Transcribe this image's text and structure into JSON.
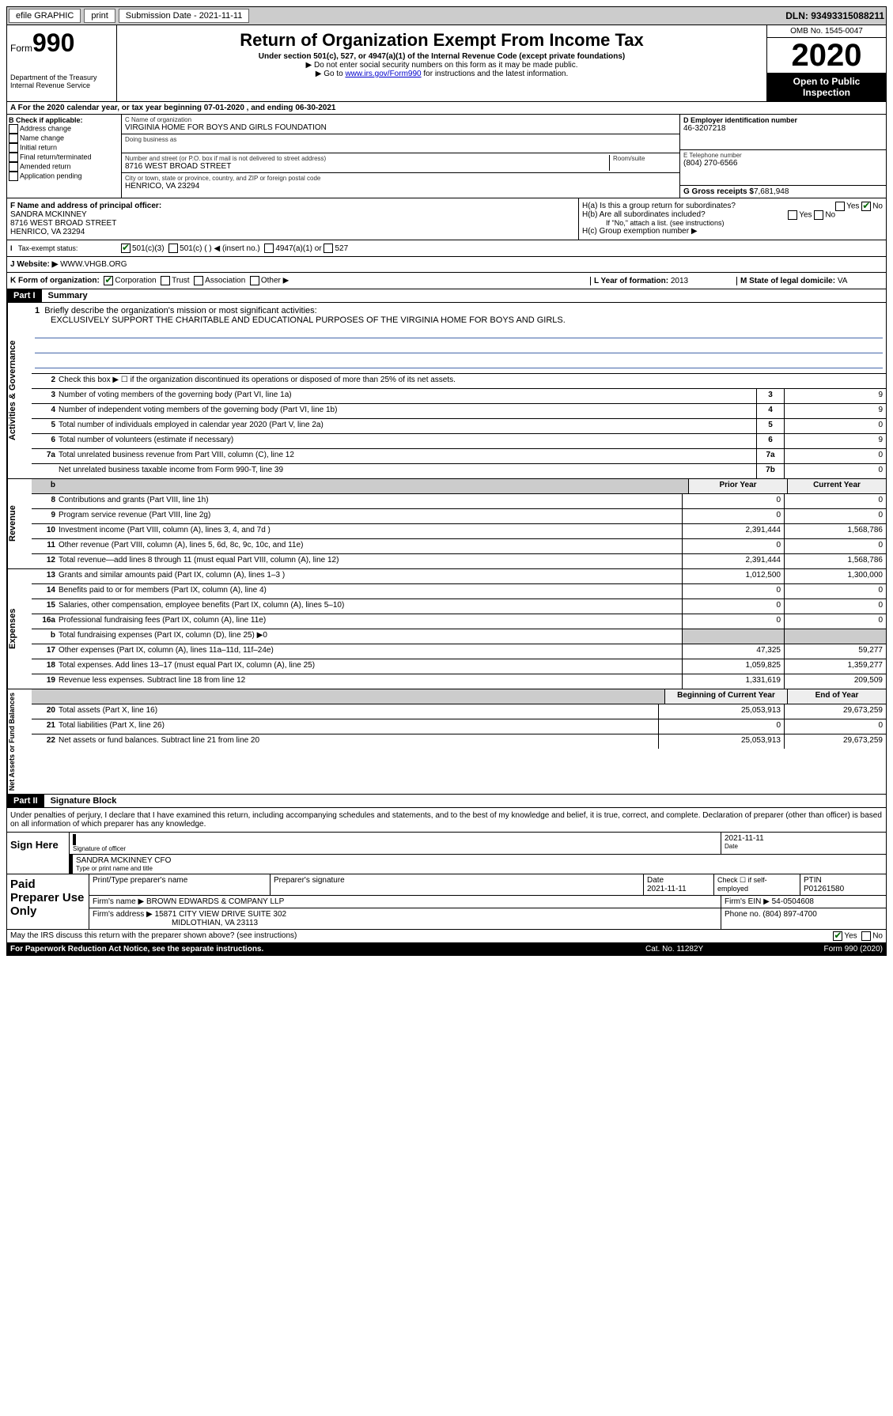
{
  "topbar": {
    "efile": "efile GRAPHIC",
    "print": "print",
    "submission": "Submission Date - 2021-11-11",
    "dln": "DLN: 93493315088211"
  },
  "header": {
    "form_small": "Form",
    "form_big": "990",
    "dept": "Department of the Treasury Internal Revenue Service",
    "title": "Return of Organization Exempt From Income Tax",
    "subtitle": "Under section 501(c), 527, or 4947(a)(1) of the Internal Revenue Code (except private foundations)",
    "note1": "▶ Do not enter social security numbers on this form as it may be made public.",
    "note2_pre": "▶ Go to ",
    "note2_link": "www.irs.gov/Form990",
    "note2_post": " for instructions and the latest information.",
    "omb": "OMB No. 1545-0047",
    "year": "2020",
    "open": "Open to Public Inspection"
  },
  "row_a": "A For the 2020 calendar year, or tax year beginning 07-01-2020   , and ending 06-30-2021",
  "col_b": {
    "title": "B Check if applicable:",
    "items": [
      "Address change",
      "Name change",
      "Initial return",
      "Final return/terminated",
      "Amended return",
      "Application pending"
    ]
  },
  "col_c": {
    "name_label": "C Name of organization",
    "name": "VIRGINIA HOME FOR BOYS AND GIRLS FOUNDATION",
    "dba_label": "Doing business as",
    "addr_label": "Number and street (or P.O. box if mail is not delivered to street address)",
    "room_label": "Room/suite",
    "addr": "8716 WEST BROAD STREET",
    "city_label": "City or town, state or province, country, and ZIP or foreign postal code",
    "city": "HENRICO, VA  23294"
  },
  "col_de": {
    "ein_label": "D Employer identification number",
    "ein": "46-3207218",
    "phone_label": "E Telephone number",
    "phone": "(804) 270-6566",
    "gross_label": "G Gross receipts $",
    "gross": "7,681,948"
  },
  "row_f": {
    "label": "F Name and address of principal officer:",
    "name": "SANDRA MCKINNEY",
    "addr": "8716 WEST BROAD STREET",
    "city": "HENRICO, VA  23294"
  },
  "row_h": {
    "ha": "H(a)  Is this a group return for subordinates?",
    "hb": "H(b)  Are all subordinates included?",
    "hb_note": "If \"No,\" attach a list. (see instructions)",
    "hc": "H(c)  Group exemption number ▶"
  },
  "row_i": {
    "label": "Tax-exempt status:",
    "opt1": "501(c)(3)",
    "opt2": "501(c) (  ) ◀ (insert no.)",
    "opt3": "4947(a)(1) or",
    "opt4": "527"
  },
  "row_j": {
    "label": "J    Website: ▶",
    "val": "WWW.VHGB.ORG"
  },
  "row_k": {
    "label": "K Form of organization:",
    "corp": "Corporation",
    "trust": "Trust",
    "assoc": "Association",
    "other": "Other ▶"
  },
  "row_l": {
    "label": "L Year of formation:",
    "val": "2013"
  },
  "row_m": {
    "label": "M State of legal domicile:",
    "val": "VA"
  },
  "part1": {
    "title": "Part I",
    "subtitle": "Summary"
  },
  "summary": {
    "q1": "Briefly describe the organization's mission or most significant activities:",
    "mission": "EXCLUSIVELY SUPPORT THE CHARITABLE AND EDUCATIONAL PURPOSES OF THE VIRGINIA HOME FOR BOYS AND GIRLS.",
    "q2": "Check this box ▶ ☐ if the organization discontinued its operations or disposed of more than 25% of its net assets.",
    "rows": [
      {
        "n": "3",
        "d": "Number of voting members of the governing body (Part VI, line 1a)",
        "c": "3",
        "v": "9"
      },
      {
        "n": "4",
        "d": "Number of independent voting members of the governing body (Part VI, line 1b)",
        "c": "4",
        "v": "9"
      },
      {
        "n": "5",
        "d": "Total number of individuals employed in calendar year 2020 (Part V, line 2a)",
        "c": "5",
        "v": "0"
      },
      {
        "n": "6",
        "d": "Total number of volunteers (estimate if necessary)",
        "c": "6",
        "v": "9"
      },
      {
        "n": "7a",
        "d": "Total unrelated business revenue from Part VIII, column (C), line 12",
        "c": "7a",
        "v": "0"
      },
      {
        "n": "",
        "d": "Net unrelated business taxable income from Form 990-T, line 39",
        "c": "7b",
        "v": "0"
      }
    ],
    "header_prior": "Prior Year",
    "header_current": "Current Year",
    "revenue": [
      {
        "n": "8",
        "d": "Contributions and grants (Part VIII, line 1h)",
        "p": "0",
        "c": "0"
      },
      {
        "n": "9",
        "d": "Program service revenue (Part VIII, line 2g)",
        "p": "0",
        "c": "0"
      },
      {
        "n": "10",
        "d": "Investment income (Part VIII, column (A), lines 3, 4, and 7d )",
        "p": "2,391,444",
        "c": "1,568,786"
      },
      {
        "n": "11",
        "d": "Other revenue (Part VIII, column (A), lines 5, 6d, 8c, 9c, 10c, and 11e)",
        "p": "0",
        "c": "0"
      },
      {
        "n": "12",
        "d": "Total revenue—add lines 8 through 11 (must equal Part VIII, column (A), line 12)",
        "p": "2,391,444",
        "c": "1,568,786"
      }
    ],
    "expenses": [
      {
        "n": "13",
        "d": "Grants and similar amounts paid (Part IX, column (A), lines 1–3 )",
        "p": "1,012,500",
        "c": "1,300,000"
      },
      {
        "n": "14",
        "d": "Benefits paid to or for members (Part IX, column (A), line 4)",
        "p": "0",
        "c": "0"
      },
      {
        "n": "15",
        "d": "Salaries, other compensation, employee benefits (Part IX, column (A), lines 5–10)",
        "p": "0",
        "c": "0"
      },
      {
        "n": "16a",
        "d": "Professional fundraising fees (Part IX, column (A), line 11e)",
        "p": "0",
        "c": "0"
      },
      {
        "n": "b",
        "d": "Total fundraising expenses (Part IX, column (D), line 25) ▶0",
        "p": "",
        "c": "",
        "shaded": true
      },
      {
        "n": "17",
        "d": "Other expenses (Part IX, column (A), lines 11a–11d, 11f–24e)",
        "p": "47,325",
        "c": "59,277"
      },
      {
        "n": "18",
        "d": "Total expenses. Add lines 13–17 (must equal Part IX, column (A), line 25)",
        "p": "1,059,825",
        "c": "1,359,277"
      },
      {
        "n": "19",
        "d": "Revenue less expenses. Subtract line 18 from line 12",
        "p": "1,331,619",
        "c": "209,509"
      }
    ],
    "header_begin": "Beginning of Current Year",
    "header_end": "End of Year",
    "netassets": [
      {
        "n": "20",
        "d": "Total assets (Part X, line 16)",
        "p": "25,053,913",
        "c": "29,673,259"
      },
      {
        "n": "21",
        "d": "Total liabilities (Part X, line 26)",
        "p": "0",
        "c": "0"
      },
      {
        "n": "22",
        "d": "Net assets or fund balances. Subtract line 21 from line 20",
        "p": "25,053,913",
        "c": "29,673,259"
      }
    ]
  },
  "sidelabels": {
    "gov": "Activities & Governance",
    "rev": "Revenue",
    "exp": "Expenses",
    "net": "Net Assets or Fund Balances"
  },
  "part2": {
    "title": "Part II",
    "subtitle": "Signature Block",
    "perjury": "Under penalties of perjury, I declare that I have examined this return, including accompanying schedules and statements, and to the best of my knowledge and belief, it is true, correct, and complete. Declaration of preparer (other than officer) is based on all information of which preparer has any knowledge."
  },
  "sign": {
    "left": "Sign Here",
    "sig_label": "Signature of officer",
    "date": "2021-11-11",
    "date_label": "Date",
    "name": "SANDRA MCKINNEY CFO",
    "name_label": "Type or print name and title"
  },
  "paid": {
    "left": "Paid Preparer Use Only",
    "prep_name_label": "Print/Type preparer's name",
    "prep_sig_label": "Preparer's signature",
    "prep_date_label": "Date",
    "prep_date": "2021-11-11",
    "check_label": "Check ☐ if self-employed",
    "ptin_label": "PTIN",
    "ptin": "P01261580",
    "firm_name_label": "Firm's name    ▶",
    "firm_name": "BROWN EDWARDS & COMPANY LLP",
    "firm_ein_label": "Firm's EIN ▶",
    "firm_ein": "54-0504608",
    "firm_addr_label": "Firm's address ▶",
    "firm_addr1": "15871 CITY VIEW DRIVE SUITE 302",
    "firm_addr2": "MIDLOTHIAN, VA  23113",
    "phone_label": "Phone no.",
    "phone": "(804) 897-4700"
  },
  "discuss": "May the IRS discuss this return with the preparer shown above? (see instructions)",
  "footer": {
    "paperwork": "For Paperwork Reduction Act Notice, see the separate instructions.",
    "cat": "Cat. No. 11282Y",
    "form": "Form 990 (2020)"
  },
  "colors": {
    "link": "#0000cc",
    "check": "#006600",
    "line": "#4466aa",
    "shade": "#cccccc"
  }
}
